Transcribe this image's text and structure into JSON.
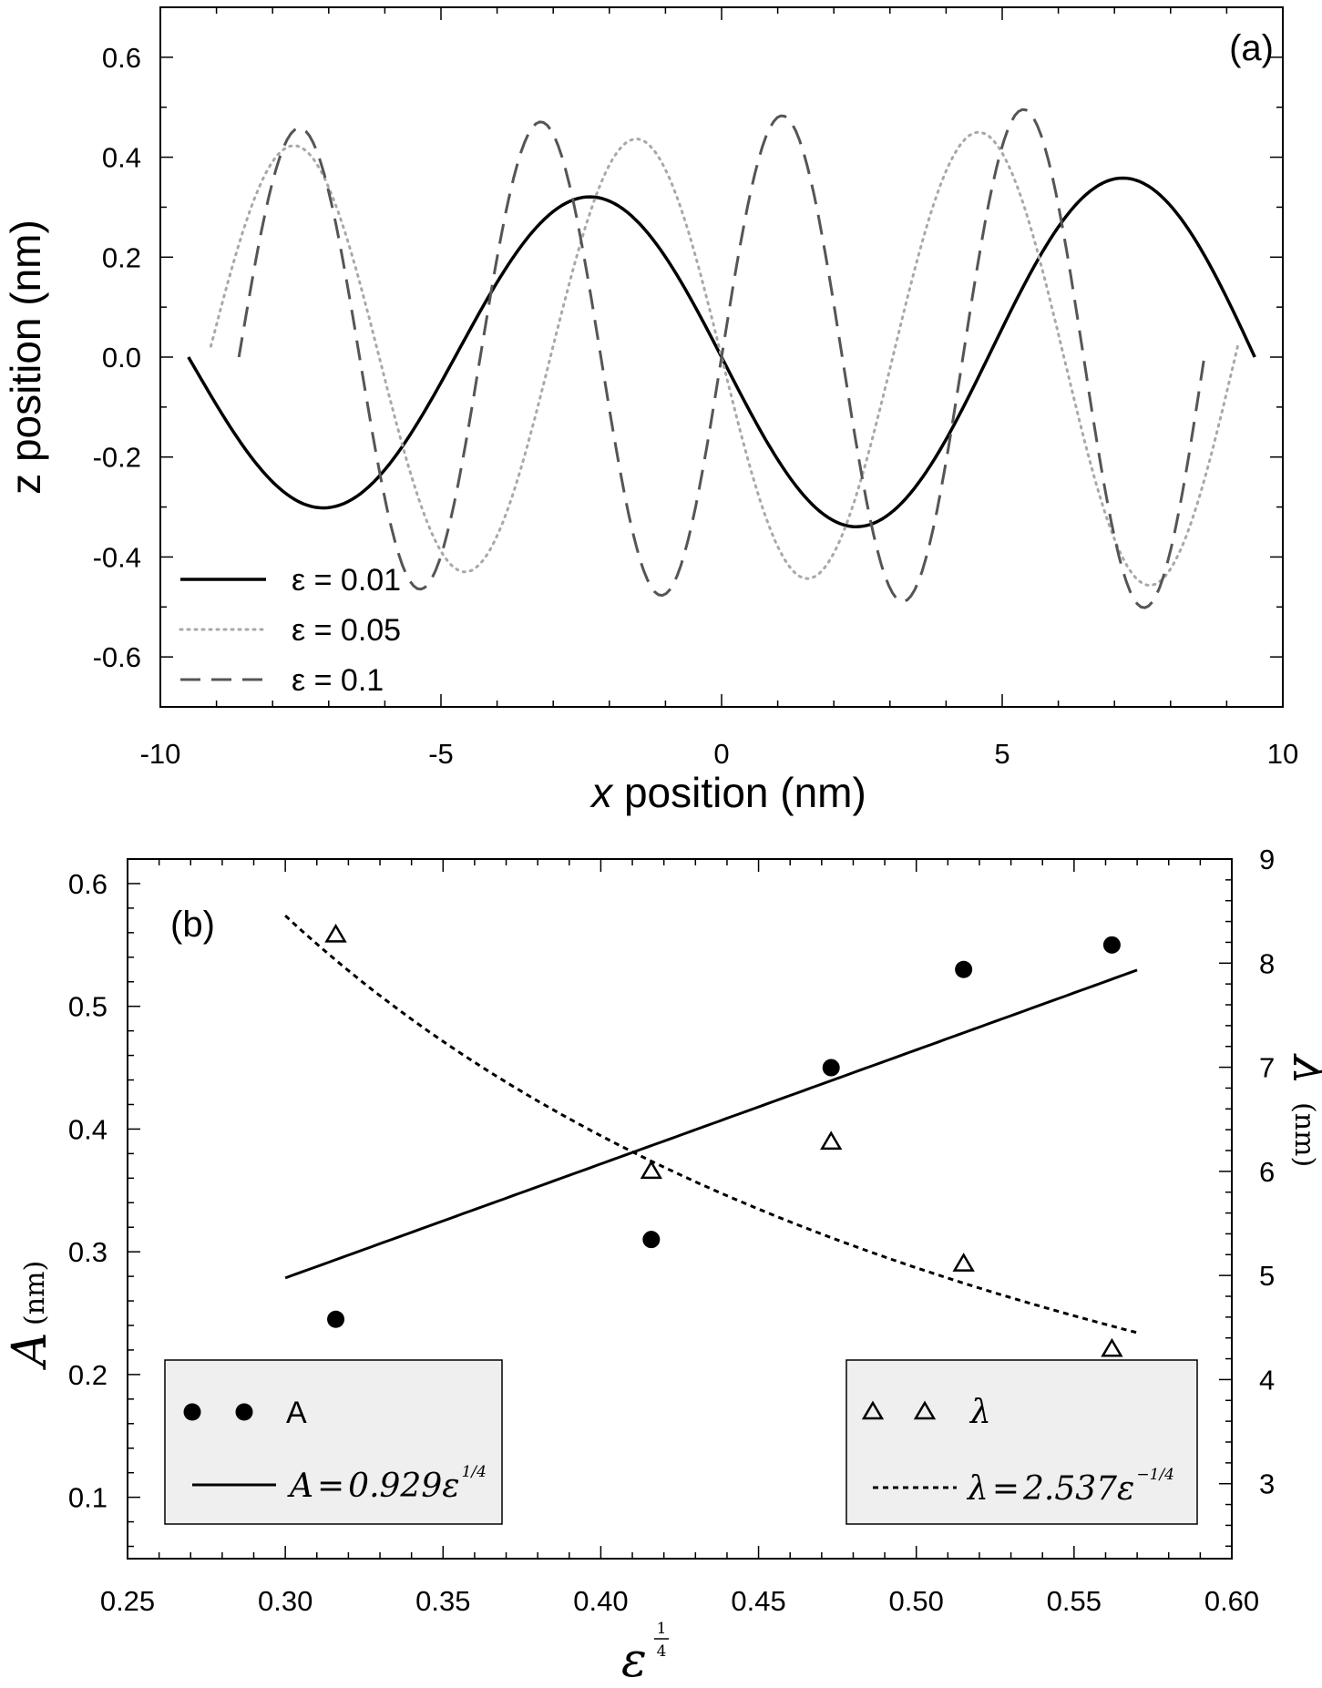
{
  "chart_data": [
    {
      "type": "line",
      "panel_label": "(a)",
      "xlabel_var": "x",
      "xlabel_rest": " position (nm)",
      "ylabel": "z position (nm)",
      "xlim": [
        -10,
        10
      ],
      "ylim": [
        -0.7,
        0.7
      ],
      "x_ticks": [
        "-10",
        "-5",
        "0",
        "5",
        "10"
      ],
      "y_ticks": [
        "-0.6",
        "-0.4",
        "-0.2",
        "0.0",
        "0.2",
        "0.4",
        "0.6"
      ],
      "legend_position": "bottom-left",
      "series": [
        {
          "name": "ε = 0.01",
          "style": "solid",
          "color": "#000000",
          "x0": -9.5,
          "x1": 9.5,
          "amplitude": 0.33,
          "wavelength": 9.5,
          "phase_x": 0.0,
          "sign": -1,
          "mod": 0.12
        },
        {
          "name": "ε = 0.05",
          "style": "dotted",
          "color": "#a8a8a8",
          "x0": -9.1,
          "x1": 9.2,
          "amplitude": 0.44,
          "wavelength": 6.1,
          "phase_x": 0.0,
          "sign": -1,
          "mod": 0.05
        },
        {
          "name": "ε = 0.1",
          "style": "dashed",
          "color": "#555555",
          "x0": -8.6,
          "x1": 8.6,
          "amplitude": 0.48,
          "wavelength": 4.3,
          "phase_x": 0.0,
          "sign": 1,
          "mod": 0.06
        }
      ]
    },
    {
      "type": "scatter",
      "panel_label": "(b)",
      "xlabel": "ε^(1/4)",
      "xlabel_base": "ε",
      "ylabel_left_var": "A",
      "ylabel_left_unit": "(nm)",
      "ylabel_right_var": "λ",
      "ylabel_right_unit": "(nm)",
      "xlim": [
        0.25,
        0.6
      ],
      "ylim_left": [
        0.05,
        0.62
      ],
      "ylim_right": [
        2.28,
        9.0
      ],
      "x_ticks": [
        "0.25",
        "0.30",
        "0.35",
        "0.40",
        "0.45",
        "0.50",
        "0.55",
        "0.60"
      ],
      "y_left_ticks": [
        "0.1",
        "0.2",
        "0.3",
        "0.4",
        "0.5",
        "0.6"
      ],
      "y_right_ticks": [
        "3",
        "4",
        "5",
        "6",
        "7",
        "8",
        "9"
      ],
      "series": [
        {
          "name": "A",
          "marker": "filled-circle",
          "axis": "left",
          "x": [
            0.316,
            0.416,
            0.473,
            0.515,
            0.562
          ],
          "y": [
            0.245,
            0.31,
            0.45,
            0.53,
            0.55
          ]
        },
        {
          "name": "λ",
          "marker": "open-triangle",
          "axis": "right",
          "x": [
            0.316,
            0.416,
            0.473,
            0.515,
            0.562
          ],
          "y": [
            8.27,
            6.0,
            6.28,
            5.11,
            4.29
          ]
        },
        {
          "name": "A=0.929ε^(1/4)",
          "style": "solid",
          "axis": "left",
          "fit": "linear",
          "coef": 0.929,
          "x_range": [
            0.3,
            0.57
          ]
        },
        {
          "name": "λ=2.537ε^(-1/4)",
          "style": "dotted",
          "axis": "right",
          "fit": "inverse",
          "coef": 2.537,
          "x_range": [
            0.3,
            0.57
          ]
        }
      ],
      "legend_left": {
        "position": "bottom-left",
        "marker_label": "A",
        "fit_lhs": "A",
        "fit_rhs": "0.929ε",
        "fit_exp": "1/4"
      },
      "legend_right": {
        "position": "bottom-right",
        "marker_label": "λ",
        "fit_lhs": "λ",
        "fit_rhs": "2.537ε",
        "fit_exp": "−1/4"
      }
    }
  ]
}
